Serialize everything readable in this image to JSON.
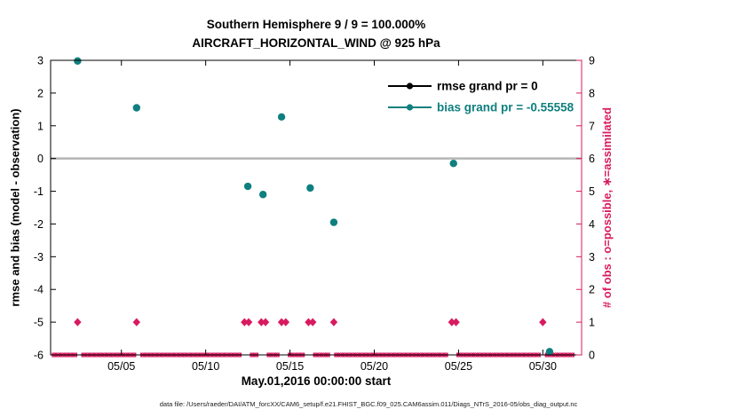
{
  "title": {
    "line1": "Southern Hemisphere 9 / 9 = 100.000%",
    "line2": "AIRCRAFT_HORIZONTAL_WIND @ 925 hPa"
  },
  "footer": "data file: /Users/raeder/DAI/ATM_forcXX/CAM6_setup/f.e21.FHIST_BGC.f09_025.CAM6assim.011/Diags_NTrS_2016-05/obs_diag_output.nc",
  "colors": {
    "rmse": "#000000",
    "bias": "#0f7f7f",
    "obs": "#d81b60",
    "zero_line": "#b5b5b5",
    "axis": "#000000"
  },
  "legend": {
    "items": [
      {
        "label": "rmse grand pr = 0",
        "color": "#000000"
      },
      {
        "label": "bias grand pr = -0.55558",
        "color": "#0f7f7f"
      }
    ]
  },
  "chart_data": {
    "type": "scatter",
    "title": "Southern Hemisphere 9 / 9 = 100.000% — AIRCRAFT_HORIZONTAL_WIND @ 925 hPa",
    "x_axis": {
      "label": "May.01,2016 00:00:00 start",
      "tick_labels": [
        "05/05",
        "05/10",
        "05/15",
        "05/20",
        "05/25",
        "05/30"
      ],
      "tick_days": [
        5,
        10,
        15,
        20,
        25,
        30
      ],
      "range_days": [
        0.8,
        32.3
      ]
    },
    "y_left": {
      "label": "rmse and bias (model - observation)",
      "ticks": [
        3,
        2,
        1,
        0,
        -1,
        -2,
        -3,
        -4,
        -5,
        -6
      ],
      "range": [
        -6,
        3
      ]
    },
    "y_right": {
      "label": "# of obs : o=possible, ∗=assimilated",
      "ticks": [
        9,
        8,
        7,
        6,
        5,
        4,
        3,
        2,
        1,
        0
      ],
      "range": [
        0,
        9
      ]
    },
    "zero_line_value": 0,
    "series": [
      {
        "name": "rmse",
        "color": "#000000",
        "points": []
      },
      {
        "name": "bias",
        "color": "#0f7f7f",
        "points": [
          {
            "day": 2.4,
            "value": 2.98
          },
          {
            "day": 5.9,
            "value": 1.55
          },
          {
            "day": 12.5,
            "value": -0.85
          },
          {
            "day": 13.4,
            "value": -1.1
          },
          {
            "day": 14.5,
            "value": 1.27
          },
          {
            "day": 16.2,
            "value": -0.9
          },
          {
            "day": 17.6,
            "value": -1.95
          },
          {
            "day": 24.7,
            "value": -0.15
          },
          {
            "day": 30.4,
            "value": -5.9
          }
        ]
      },
      {
        "name": "num_obs_one",
        "axis": "right",
        "color": "#d81b60",
        "value": 1,
        "days": [
          2.4,
          5.9,
          12.3,
          12.55,
          13.3,
          13.55,
          14.5,
          14.75,
          16.1,
          16.35,
          17.6,
          24.6,
          24.85,
          30.0
        ]
      },
      {
        "name": "num_obs_zero",
        "axis": "right",
        "color": "#d81b60",
        "value": 0,
        "days_start": 1.0,
        "days_end": 31.75,
        "days_step": 0.25
      }
    ]
  }
}
